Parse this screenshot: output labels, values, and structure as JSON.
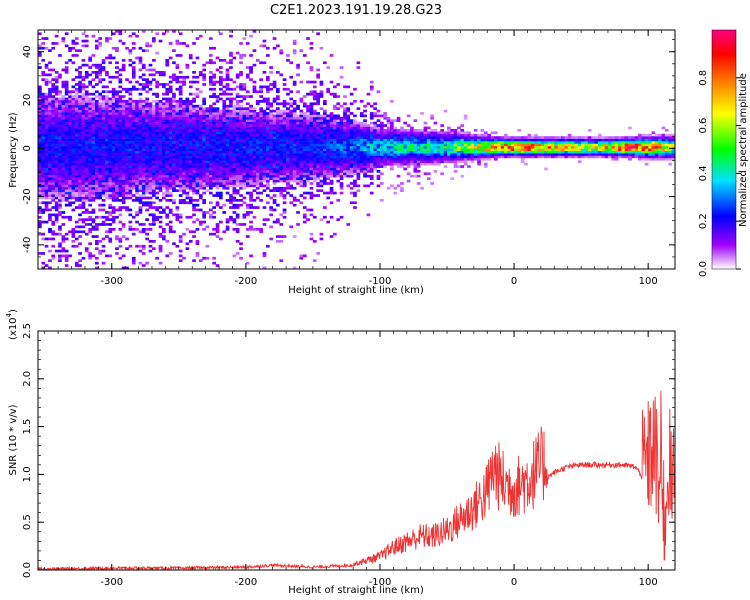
{
  "title": "C2E1.2023.191.19.28.G23",
  "colors": {
    "snr_line": "#ee3333",
    "colormap": [
      "#ffffff",
      "#a000ff",
      "#0000ff",
      "#00e0ff",
      "#00ff00",
      "#ffff00",
      "#ff7f00",
      "#ff0000",
      "#ff0080"
    ]
  },
  "chart_data": [
    {
      "type": "heatmap",
      "title": "C2E1.2023.191.19.28.G23",
      "xlabel": "Height of straight line (km)",
      "ylabel": "Frequency (Hz)",
      "xlim": [
        -355,
        120
      ],
      "ylim": [
        -50,
        49
      ],
      "xticks": [
        -300,
        -200,
        -100,
        0,
        100
      ],
      "xtick_labels": [
        "-300",
        "-200",
        "-100",
        "0",
        "100"
      ],
      "yticks": [
        -40,
        -20,
        0,
        20,
        40
      ],
      "ytick_labels": [
        "-40",
        "-20",
        "0",
        "20",
        "40"
      ],
      "colorbar": {
        "label": "Normalized spectral amplitude",
        "range": [
          0,
          1
        ],
        "ticks": [
          0.0,
          0.2,
          0.4,
          0.6,
          0.8
        ],
        "tick_labels": [
          "0.0",
          "0.2",
          "0.4",
          "0.6",
          "0.8"
        ]
      },
      "description_profile": [
        {
          "x": -355,
          "peak_amplitude": 0.2,
          "spread_hz": 45
        },
        {
          "x": -150,
          "peak_amplitude": 0.22,
          "spread_hz": 25
        },
        {
          "x": -100,
          "peak_amplitude": 0.35,
          "spread_hz": 12
        },
        {
          "x": -50,
          "peak_amplitude": 0.45,
          "spread_hz": 8
        },
        {
          "x": -20,
          "peak_amplitude": 0.7,
          "spread_hz": 4
        },
        {
          "x": 0,
          "peak_amplitude": 0.85,
          "spread_hz": 3
        },
        {
          "x": 60,
          "peak_amplitude": 0.6,
          "spread_hz": 3
        },
        {
          "x": 80,
          "peak_amplitude": 0.85,
          "spread_hz": 3
        },
        {
          "x": 100,
          "peak_amplitude": 0.85,
          "spread_hz": 4
        },
        {
          "x": 120,
          "peak_amplitude": 0.5,
          "spread_hz": 5
        }
      ]
    },
    {
      "type": "line",
      "xlabel": "Height of straight line (km)",
      "ylabel": "SNR (10 * v/v)",
      "y_multiplier_label": "(x10",
      "y_multiplier_exp": "4",
      "xlim": [
        -355,
        120
      ],
      "ylim": [
        0,
        2.5
      ],
      "xticks": [
        -300,
        -200,
        -100,
        0,
        100
      ],
      "xtick_labels": [
        "-300",
        "-200",
        "-100",
        "0",
        "100"
      ],
      "yticks": [
        0.0,
        0.5,
        1.0,
        1.5,
        2.0,
        2.5
      ],
      "ytick_labels": [
        "0.0",
        "0.5",
        "1.0",
        "1.5",
        "2.0",
        "2.5"
      ],
      "series": [
        {
          "x": [
            -355,
            -300,
            -250,
            -200,
            -180,
            -150,
            -120,
            -100,
            -90,
            -80,
            -70,
            -60,
            -50,
            -40,
            -30,
            -20,
            -15,
            -10,
            -5,
            0,
            10,
            20,
            30,
            40,
            50,
            60,
            70,
            80,
            90,
            95,
            100,
            105,
            108,
            110,
            112,
            115,
            118,
            120
          ],
          "y": [
            0.01,
            0.02,
            0.02,
            0.03,
            0.05,
            0.03,
            0.05,
            0.12,
            0.2,
            0.25,
            0.3,
            0.3,
            0.35,
            0.45,
            0.55,
            0.7,
            0.9,
            0.8,
            0.75,
            0.72,
            0.8,
            0.92,
            1.02,
            1.08,
            1.1,
            1.1,
            1.1,
            1.1,
            1.08,
            1.0,
            1.15,
            1.3,
            0.8,
            1.4,
            0.4,
            1.2,
            0.8,
            1.05
          ]
        }
      ]
    }
  ]
}
